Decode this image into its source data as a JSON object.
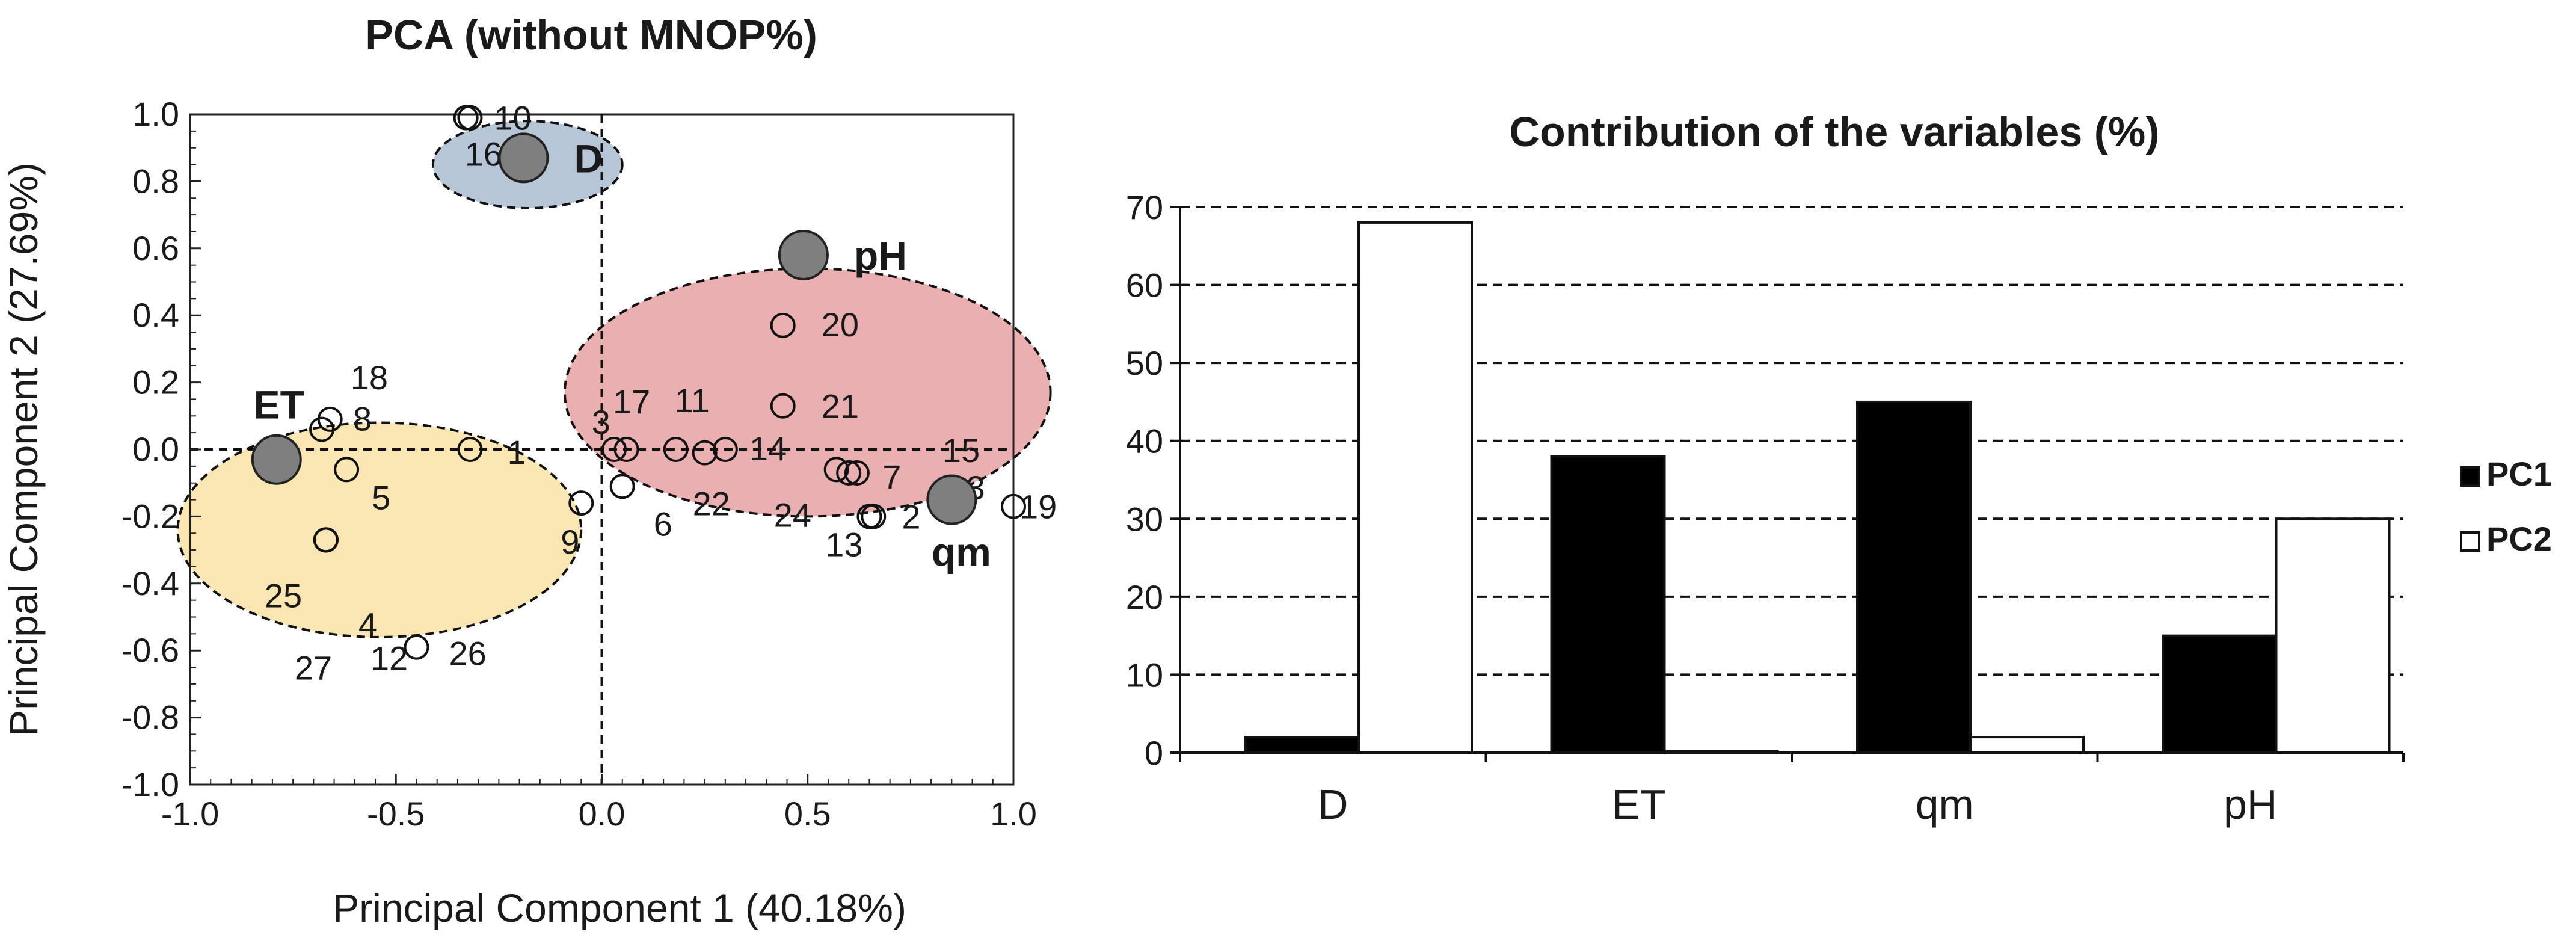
{
  "colors": {
    "ellipse_blue": "#b7c6d7",
    "ellipse_red": "#eab0b1",
    "ellipse_yellow": "#fae6b3",
    "variable_marker": "#7f7f7f",
    "pc1_bar": "#000000",
    "pc2_bar": "#ffffff"
  },
  "chart_data": [
    {
      "type": "scatter",
      "title": "PCA (without MNOP%)",
      "xlabel": "Principal Component 1 (40.18%)",
      "ylabel": "Principal Component 2 (27.69%)",
      "xlim": [
        -1.0,
        1.0
      ],
      "ylim": [
        -1.0,
        1.0
      ],
      "xticks": [
        "-1.0",
        "-0.5",
        "0.0",
        "0.5",
        "1.0"
      ],
      "yticks": [
        "1.0",
        "0.8",
        "0.6",
        "0.4",
        "0.2",
        "0.0",
        "-0.2",
        "-0.4",
        "-0.6",
        "-0.8",
        "-1.0"
      ],
      "xtick_values": [
        -1.0,
        -0.5,
        0.0,
        0.5,
        1.0
      ],
      "ytick_values": [
        1.0,
        0.8,
        0.6,
        0.4,
        0.2,
        0.0,
        -0.2,
        -0.4,
        -0.6,
        -0.8,
        -1.0
      ],
      "clusters": [
        {
          "name": "cluster-blue",
          "color": "#b7c6d7",
          "cx": -0.18,
          "cy": 0.85,
          "rx": 0.23,
          "ry": 0.13
        },
        {
          "name": "cluster-red",
          "color": "#eab0b1",
          "cx": 0.5,
          "cy": 0.17,
          "rx": 0.59,
          "ry": 0.37
        },
        {
          "name": "cluster-yellow",
          "color": "#fae6b3",
          "cx": -0.54,
          "cy": -0.24,
          "rx": 0.49,
          "ry": 0.32
        }
      ],
      "variables": [
        {
          "name": "D",
          "x": -0.19,
          "y": 0.87
        },
        {
          "name": "pH",
          "x": 0.49,
          "y": 0.58
        },
        {
          "name": "ET",
          "x": -0.79,
          "y": -0.03
        },
        {
          "name": "qm",
          "x": 0.85,
          "y": -0.15
        }
      ],
      "samples": [
        {
          "label": "10",
          "x": -0.32,
          "y": 0.99
        },
        {
          "label": "16",
          "x": -0.33,
          "y": 0.99
        },
        {
          "label": "20",
          "x": 0.44,
          "y": 0.37
        },
        {
          "label": "21",
          "x": 0.44,
          "y": 0.13
        },
        {
          "label": "15",
          "x": 0.62,
          "y": -0.07
        },
        {
          "label": "17",
          "x": 0.03,
          "y": 0.0
        },
        {
          "label": "11",
          "x": 0.18,
          "y": 0.0
        },
        {
          "label": "3",
          "x": 0.06,
          "y": 0.0
        },
        {
          "label": "14",
          "x": 0.3,
          "y": 0.0
        },
        {
          "label": "6",
          "x": 0.05,
          "y": -0.11
        },
        {
          "label": "9",
          "x": -0.05,
          "y": -0.16
        },
        {
          "label": "22",
          "x": 0.25,
          "y": -0.01
        },
        {
          "label": "24",
          "x": 0.57,
          "y": -0.06
        },
        {
          "label": "7",
          "x": 0.6,
          "y": -0.07
        },
        {
          "label": "2",
          "x": 0.65,
          "y": -0.2
        },
        {
          "label": "13",
          "x": 0.66,
          "y": -0.2
        },
        {
          "label": "23",
          "x": 0.84,
          "y": -0.12
        },
        {
          "label": "19",
          "x": 1.0,
          "y": -0.17
        },
        {
          "label": "1",
          "x": -0.32,
          "y": 0.0
        },
        {
          "label": "18",
          "x": -0.66,
          "y": 0.09
        },
        {
          "label": "8",
          "x": -0.68,
          "y": 0.06
        },
        {
          "label": "5",
          "x": -0.62,
          "y": -0.06
        },
        {
          "label": "25",
          "x": -0.67,
          "y": -0.27
        },
        {
          "label": "4",
          "x": -0.67,
          "y": -0.27
        },
        {
          "label": "27",
          "x": -0.67,
          "y": -0.27
        },
        {
          "label": "12",
          "x": -0.67,
          "y": -0.27
        },
        {
          "label": "26",
          "x": -0.45,
          "y": -0.59
        }
      ]
    },
    {
      "type": "bar",
      "title": "Contribution of the variables (%)",
      "categories": [
        "D",
        "ET",
        "qm",
        "pH"
      ],
      "series": [
        {
          "name": "PC1",
          "color": "#000000",
          "values": [
            2,
            38,
            45,
            15
          ]
        },
        {
          "name": "PC2",
          "color": "#ffffff",
          "values": [
            68,
            0.2,
            2,
            30
          ]
        }
      ],
      "ylim": [
        0,
        70
      ],
      "yticks": [
        "0",
        "10",
        "20",
        "30",
        "40",
        "50",
        "60",
        "70"
      ],
      "ytick_values": [
        0,
        10,
        20,
        30,
        40,
        50,
        60,
        70
      ],
      "grid": "dashed horizontal",
      "legend": "right"
    }
  ]
}
